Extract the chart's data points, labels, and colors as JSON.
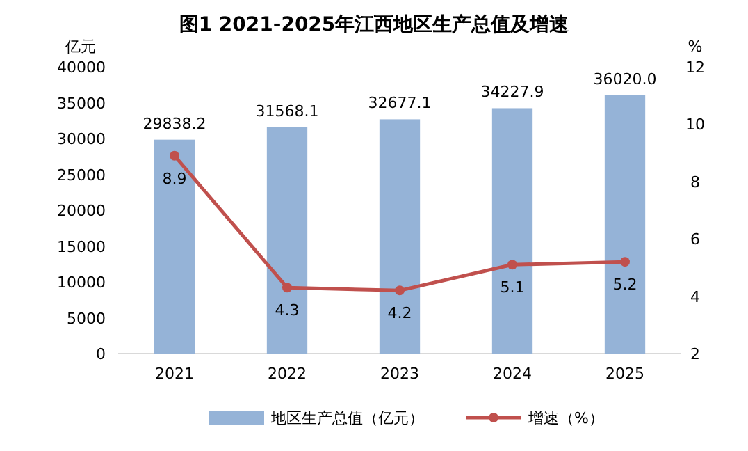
{
  "chart_data": {
    "type": "bar",
    "title": "图1  2021-2025年江西地区生产总值及增速",
    "ylabel": "亿元",
    "y2label": "%",
    "categories": [
      "2021",
      "2022",
      "2023",
      "2024",
      "2025"
    ],
    "series": [
      {
        "name": "地区生产总值（亿元）",
        "color": "#95b3d7",
        "values": [
          29838.2,
          31568.1,
          32677.1,
          34227.9,
          36020.0
        ],
        "value_labels": [
          "29838.2",
          "31568.1",
          "32677.1",
          "34227.9",
          "36020.0"
        ]
      },
      {
        "name": "增速（%）",
        "type": "line",
        "axis": "y2",
        "color": "#c0504d",
        "values": [
          8.9,
          4.3,
          4.2,
          5.1,
          5.2
        ],
        "value_labels": [
          "8.9",
          "4.3",
          "4.2",
          "5.1",
          "5.2"
        ]
      }
    ],
    "ylim": [
      0,
      40000
    ],
    "yticks": [
      0,
      5000,
      10000,
      15000,
      20000,
      25000,
      30000,
      35000,
      40000
    ],
    "y2lim": [
      2,
      12
    ],
    "y2ticks": [
      2,
      4,
      6,
      8,
      10,
      12
    ],
    "legend": "bottom",
    "marker": "circle"
  }
}
